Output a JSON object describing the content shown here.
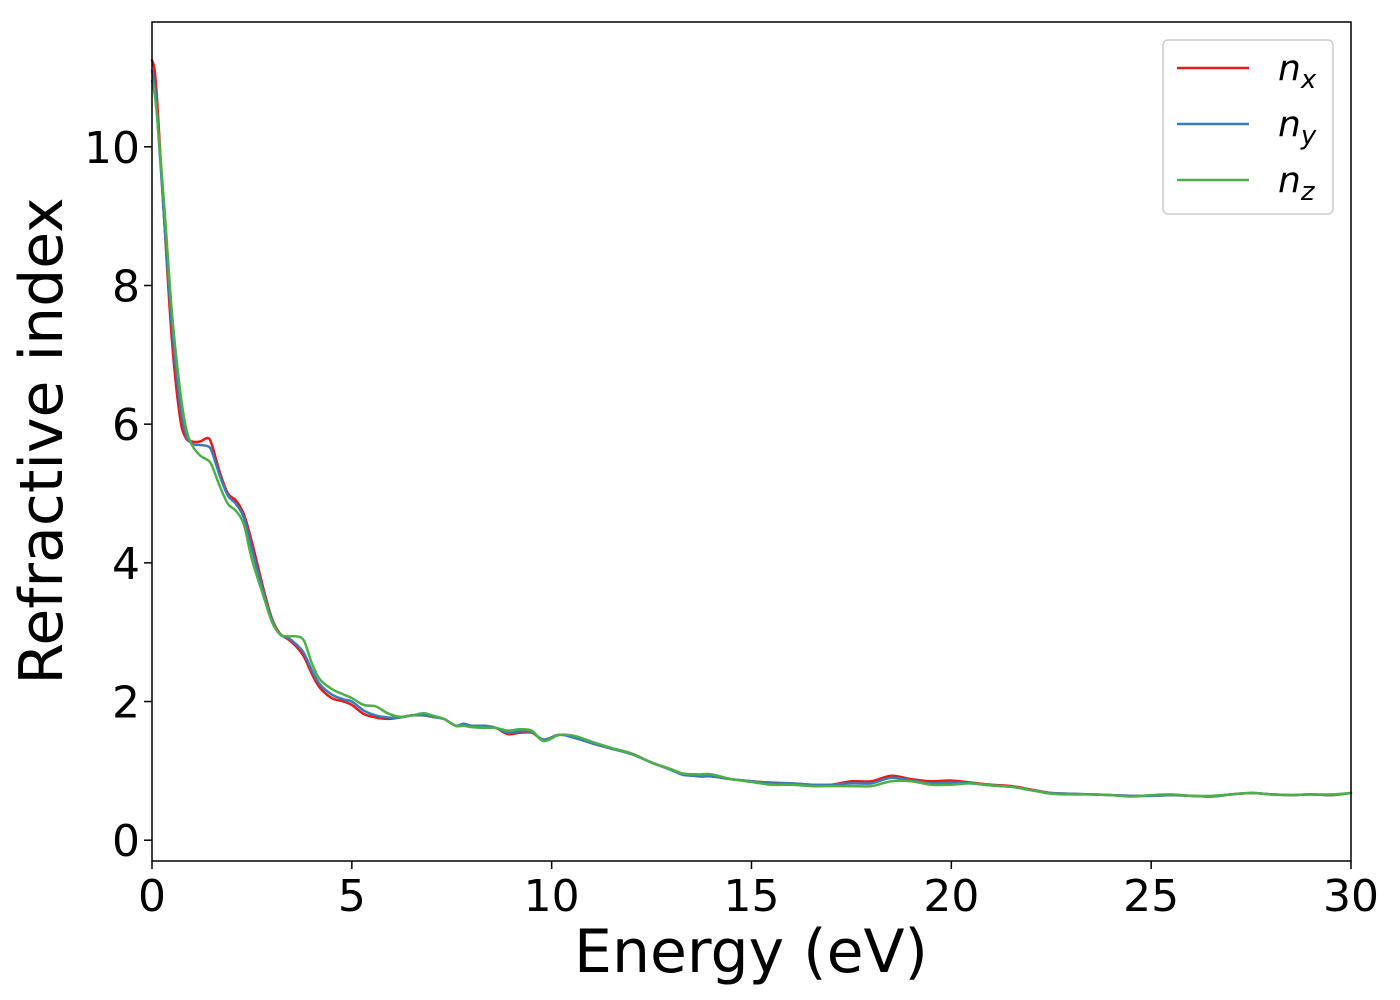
{
  "chart_data": {
    "type": "line",
    "xlabel": "Energy (eV)",
    "ylabel": "Refractive index",
    "xlim": [
      0,
      30
    ],
    "ylim": [
      -0.3,
      11.8
    ],
    "xticks": [
      0,
      5,
      10,
      15,
      20,
      25,
      30
    ],
    "yticks": [
      0,
      2,
      4,
      6,
      8,
      10
    ],
    "grid": false,
    "legend_position": "top-right",
    "series": [
      {
        "name": "n_x",
        "label_base": "n",
        "label_sub": "x",
        "color": "#e41a1c",
        "x": [
          0,
          0.1,
          0.3,
          0.5,
          0.7,
          0.85,
          1.0,
          1.2,
          1.4,
          1.5,
          1.7,
          1.9,
          2.1,
          2.3,
          2.5,
          2.8,
          3.0,
          3.2,
          3.4,
          3.6,
          3.8,
          4.0,
          4.2,
          4.5,
          4.8,
          5.0,
          5.3,
          5.6,
          5.9,
          6.2,
          6.5,
          6.8,
          7.0,
          7.3,
          7.6,
          7.8,
          8.0,
          8.3,
          8.6,
          8.9,
          9.2,
          9.5,
          9.8,
          10.2,
          10.6,
          11.0,
          11.5,
          12.0,
          12.5,
          13.0,
          13.3,
          13.7,
          14.0,
          14.5,
          15.0,
          15.5,
          16.0,
          16.5,
          17.0,
          17.5,
          18.0,
          18.5,
          19.0,
          19.5,
          20.0,
          20.5,
          21.0,
          21.5,
          22.0,
          22.5,
          23.0,
          23.5,
          24.0,
          24.5,
          25.0,
          25.5,
          26.0,
          26.5,
          27.0,
          27.5,
          28.0,
          28.5,
          29.0,
          29.5,
          30.0
        ],
        "y": [
          11.25,
          10.9,
          9.0,
          7.2,
          6.1,
          5.8,
          5.75,
          5.75,
          5.8,
          5.7,
          5.3,
          5.0,
          4.9,
          4.7,
          4.3,
          3.6,
          3.2,
          2.98,
          2.9,
          2.8,
          2.65,
          2.4,
          2.2,
          2.05,
          2.0,
          1.95,
          1.82,
          1.77,
          1.75,
          1.77,
          1.8,
          1.8,
          1.78,
          1.75,
          1.65,
          1.67,
          1.65,
          1.65,
          1.62,
          1.53,
          1.55,
          1.55,
          1.45,
          1.52,
          1.48,
          1.4,
          1.32,
          1.25,
          1.12,
          1.02,
          0.95,
          0.92,
          0.92,
          0.88,
          0.85,
          0.83,
          0.82,
          0.8,
          0.8,
          0.85,
          0.85,
          0.93,
          0.88,
          0.85,
          0.86,
          0.83,
          0.8,
          0.78,
          0.73,
          0.68,
          0.67,
          0.66,
          0.65,
          0.64,
          0.64,
          0.65,
          0.64,
          0.63,
          0.66,
          0.68,
          0.66,
          0.65,
          0.66,
          0.65,
          0.68
        ]
      },
      {
        "name": "n_y",
        "label_base": "n",
        "label_sub": "y",
        "color": "#377eb8",
        "x": [
          0,
          0.1,
          0.3,
          0.5,
          0.7,
          0.85,
          1.0,
          1.2,
          1.4,
          1.5,
          1.7,
          1.9,
          2.1,
          2.3,
          2.5,
          2.8,
          3.0,
          3.2,
          3.4,
          3.6,
          3.8,
          4.0,
          4.2,
          4.5,
          4.8,
          5.0,
          5.3,
          5.6,
          5.9,
          6.2,
          6.5,
          6.8,
          7.0,
          7.3,
          7.6,
          7.8,
          8.0,
          8.3,
          8.6,
          8.9,
          9.2,
          9.5,
          9.8,
          10.2,
          10.6,
          11.0,
          11.5,
          12.0,
          12.5,
          13.0,
          13.3,
          13.7,
          14.0,
          14.5,
          15.0,
          15.5,
          16.0,
          16.5,
          17.0,
          17.5,
          18.0,
          18.5,
          19.0,
          19.5,
          20.0,
          20.5,
          21.0,
          21.5,
          22.0,
          22.5,
          23.0,
          23.5,
          24.0,
          24.5,
          25.0,
          25.5,
          26.0,
          26.5,
          27.0,
          27.5,
          28.0,
          28.5,
          29.0,
          29.5,
          30.0
        ],
        "y": [
          11.1,
          10.7,
          9.0,
          7.4,
          6.3,
          5.85,
          5.72,
          5.7,
          5.68,
          5.6,
          5.25,
          4.97,
          4.85,
          4.65,
          4.2,
          3.55,
          3.18,
          2.97,
          2.92,
          2.83,
          2.7,
          2.45,
          2.25,
          2.1,
          2.03,
          2.0,
          1.87,
          1.8,
          1.77,
          1.77,
          1.8,
          1.8,
          1.78,
          1.75,
          1.65,
          1.68,
          1.65,
          1.65,
          1.62,
          1.55,
          1.57,
          1.56,
          1.45,
          1.52,
          1.47,
          1.4,
          1.32,
          1.24,
          1.12,
          1.01,
          0.94,
          0.93,
          0.92,
          0.88,
          0.85,
          0.82,
          0.82,
          0.8,
          0.8,
          0.82,
          0.82,
          0.9,
          0.86,
          0.82,
          0.83,
          0.82,
          0.79,
          0.77,
          0.72,
          0.68,
          0.67,
          0.66,
          0.65,
          0.64,
          0.64,
          0.65,
          0.64,
          0.63,
          0.66,
          0.68,
          0.66,
          0.65,
          0.66,
          0.65,
          0.68
        ]
      },
      {
        "name": "n_z",
        "label_base": "n",
        "label_sub": "z",
        "color": "#4daf4a",
        "x": [
          0,
          0.1,
          0.3,
          0.5,
          0.7,
          0.85,
          1.0,
          1.2,
          1.4,
          1.5,
          1.7,
          1.9,
          2.1,
          2.3,
          2.5,
          2.8,
          3.0,
          3.2,
          3.4,
          3.6,
          3.8,
          4.0,
          4.2,
          4.5,
          4.8,
          5.0,
          5.3,
          5.6,
          5.9,
          6.2,
          6.5,
          6.8,
          7.0,
          7.3,
          7.6,
          7.8,
          8.0,
          8.3,
          8.6,
          8.9,
          9.2,
          9.5,
          9.8,
          10.2,
          10.6,
          11.0,
          11.5,
          12.0,
          12.5,
          13.0,
          13.3,
          13.7,
          14.0,
          14.5,
          15.0,
          15.5,
          16.0,
          16.5,
          17.0,
          17.5,
          18.0,
          18.5,
          19.0,
          19.5,
          20.0,
          20.5,
          21.0,
          21.5,
          22.0,
          22.5,
          23.0,
          23.5,
          24.0,
          24.5,
          25.0,
          25.5,
          26.0,
          26.5,
          27.0,
          27.5,
          28.0,
          28.5,
          29.0,
          29.5,
          30.0
        ],
        "y": [
          10.95,
          10.6,
          9.2,
          7.6,
          6.5,
          5.95,
          5.7,
          5.55,
          5.48,
          5.4,
          5.1,
          4.85,
          4.75,
          4.55,
          4.05,
          3.5,
          3.15,
          2.97,
          2.94,
          2.94,
          2.88,
          2.55,
          2.32,
          2.18,
          2.1,
          2.05,
          1.95,
          1.93,
          1.83,
          1.78,
          1.8,
          1.83,
          1.8,
          1.75,
          1.65,
          1.65,
          1.63,
          1.62,
          1.62,
          1.58,
          1.6,
          1.58,
          1.43,
          1.52,
          1.5,
          1.42,
          1.33,
          1.25,
          1.12,
          1.02,
          0.96,
          0.95,
          0.95,
          0.88,
          0.84,
          0.8,
          0.8,
          0.78,
          0.78,
          0.78,
          0.78,
          0.85,
          0.85,
          0.8,
          0.8,
          0.82,
          0.79,
          0.77,
          0.72,
          0.67,
          0.66,
          0.66,
          0.65,
          0.63,
          0.65,
          0.66,
          0.64,
          0.64,
          0.66,
          0.68,
          0.66,
          0.65,
          0.66,
          0.66,
          0.68
        ]
      }
    ]
  }
}
